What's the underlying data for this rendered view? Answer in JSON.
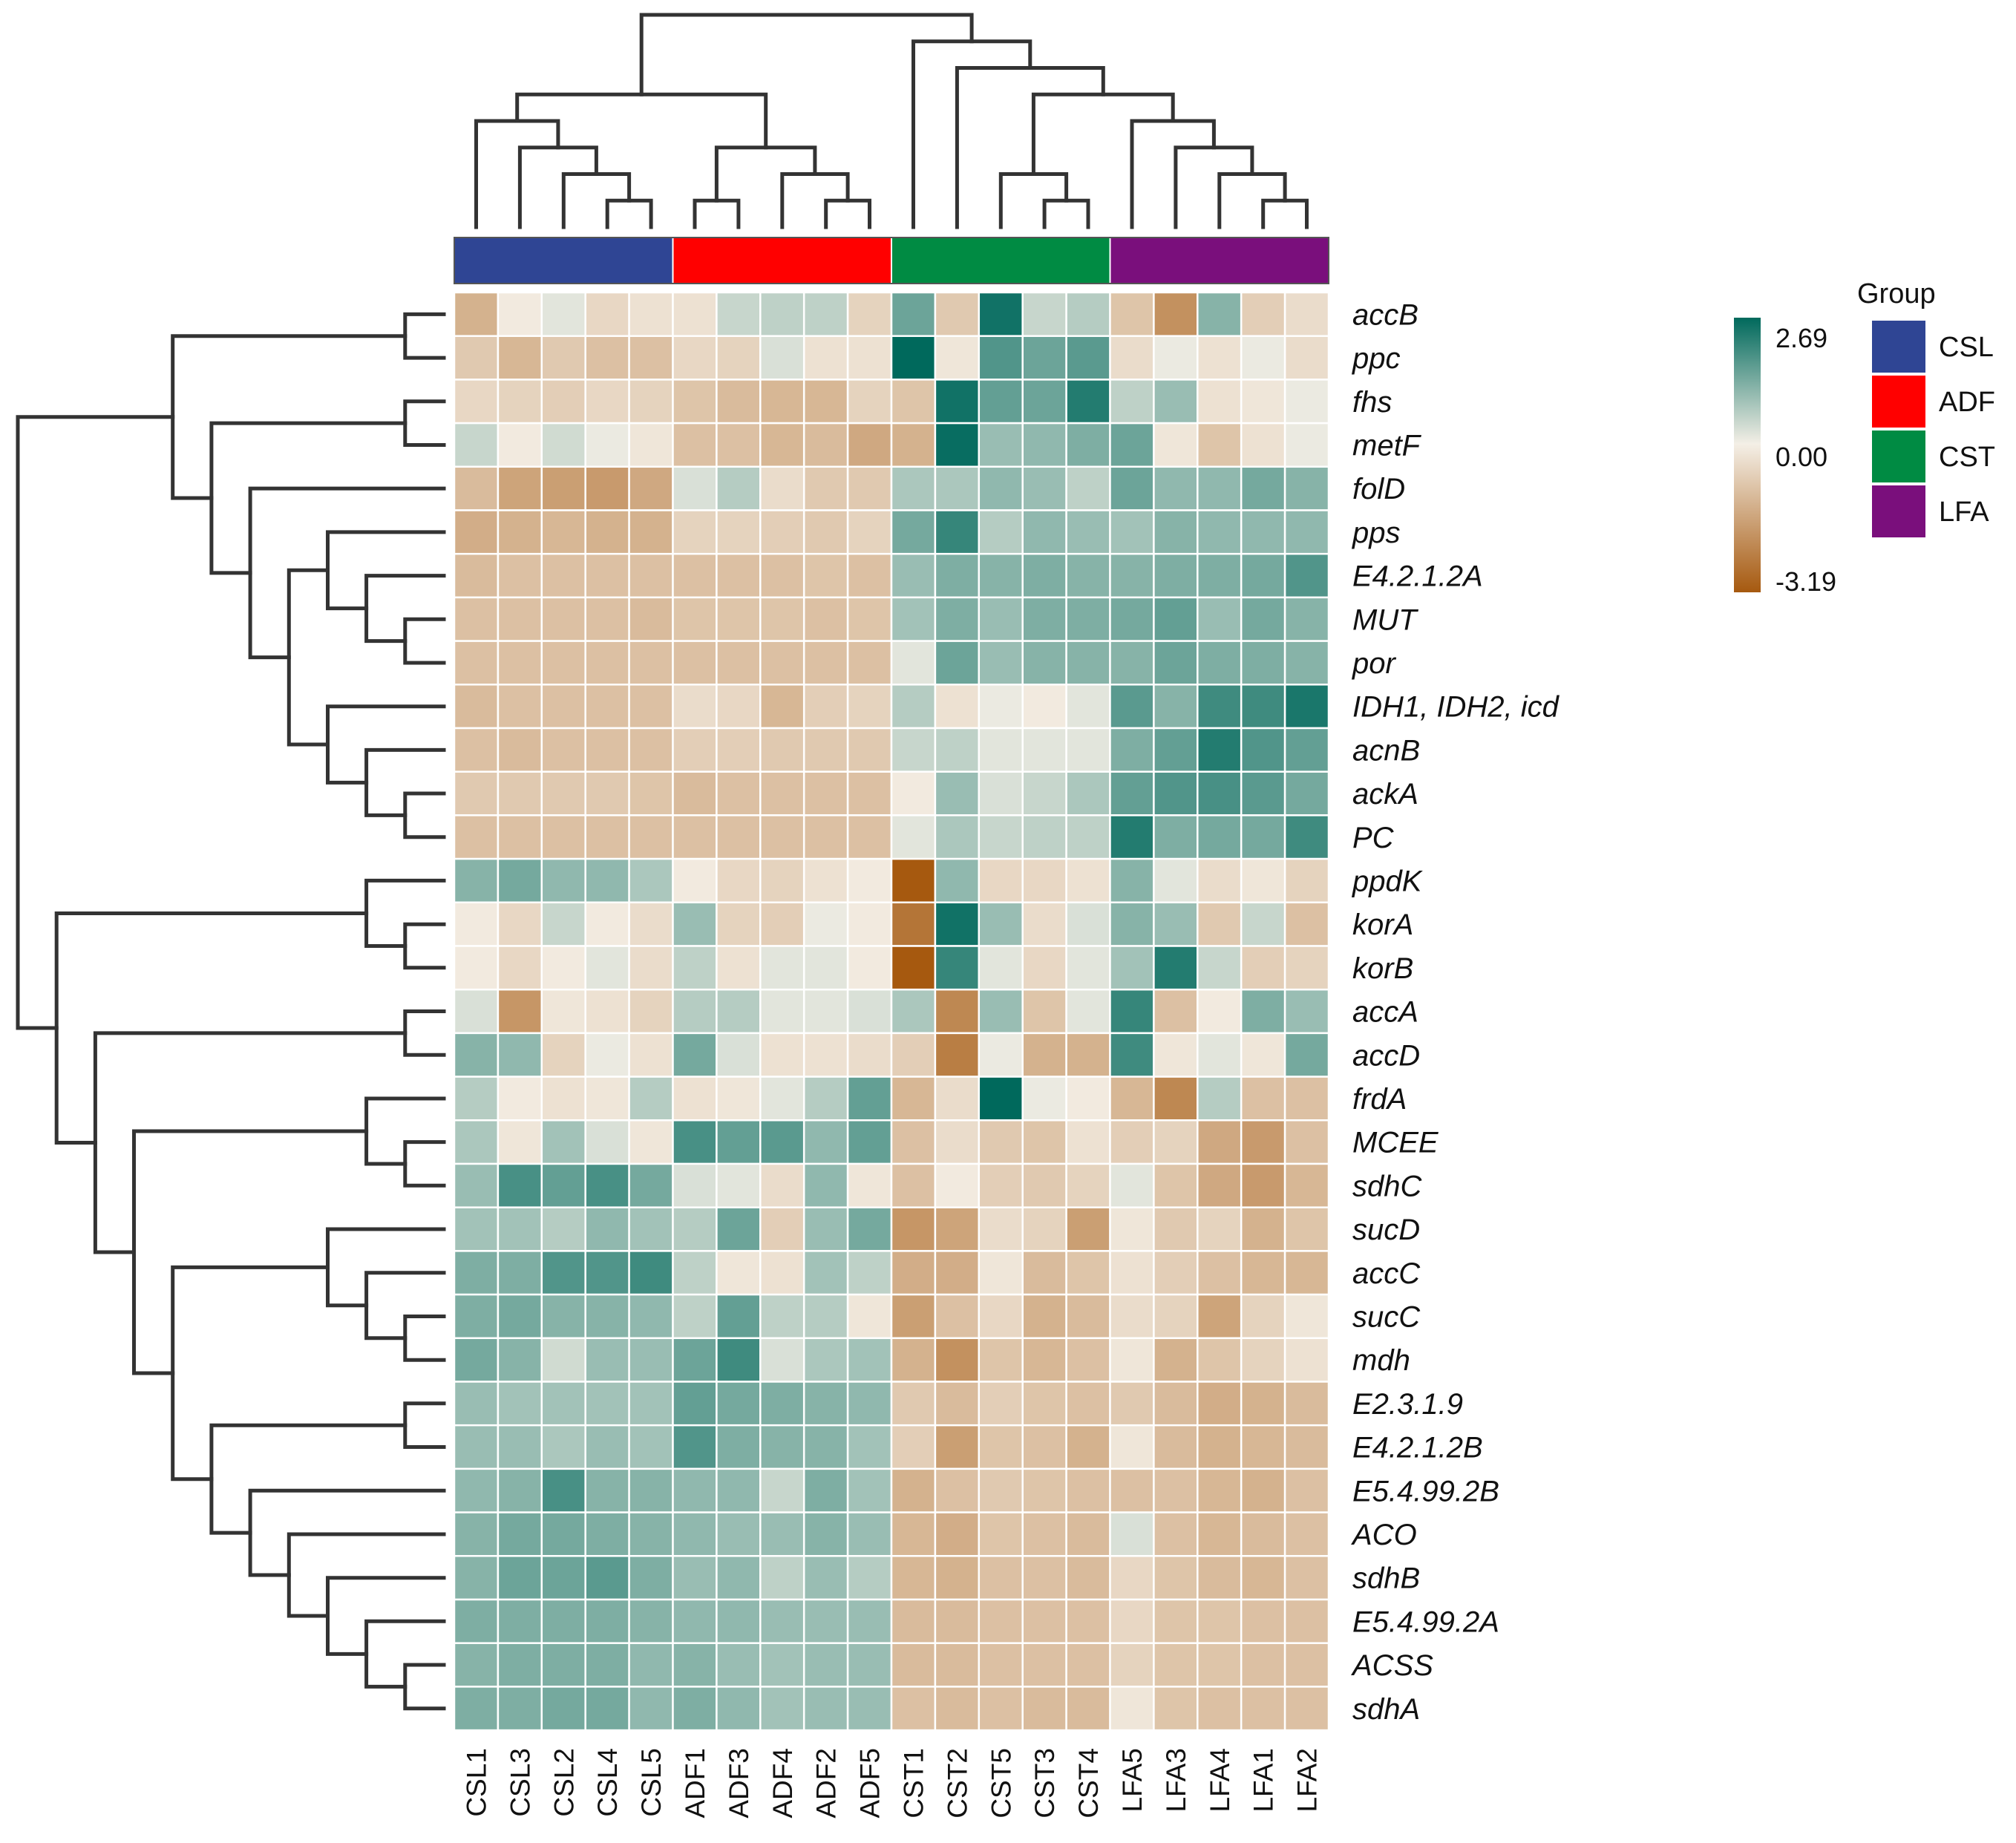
{
  "chart_data": {
    "type": "heatmap",
    "title": "",
    "columns": [
      "CSL1",
      "CSL3",
      "CSL2",
      "CSL4",
      "CSL5",
      "ADF1",
      "ADF3",
      "ADF4",
      "ADF2",
      "ADF5",
      "CST1",
      "CST2",
      "CST5",
      "CST3",
      "CST4",
      "LFA5",
      "LFA3",
      "LFA4",
      "LFA1",
      "LFA2"
    ],
    "column_groups": [
      "CSL",
      "CSL",
      "CSL",
      "CSL",
      "CSL",
      "ADF",
      "ADF",
      "ADF",
      "ADF",
      "ADF",
      "CST",
      "CST",
      "CST",
      "CST",
      "CST",
      "LFA",
      "LFA",
      "LFA",
      "LFA",
      "LFA"
    ],
    "rows": [
      "accB",
      "ppc",
      "fhs",
      "metF",
      "folD",
      "pps",
      "E4.2.1.2A",
      "MUT",
      "por",
      "IDH1, IDH2, icd",
      "acnB",
      "ackA",
      "PC",
      "ppdK",
      "korA",
      "korB",
      "accA",
      "accD",
      "frdA",
      "MCEE",
      "sdhC",
      "sucD",
      "accC",
      "sucC",
      "mdh",
      "E2.3.1.9",
      "E4.2.1.2B",
      "E5.4.99.2B",
      "ACO",
      "sdhB",
      "E5.4.99.2A",
      "ACSS",
      "sdhA"
    ],
    "values": [
      [
        -1.3,
        -0.1,
        0.2,
        -0.5,
        -0.3,
        -0.3,
        0.5,
        0.6,
        0.6,
        -0.6,
        1.5,
        -0.8,
        2.5,
        0.5,
        0.7,
        -0.9,
        -2.0,
        1.2,
        -0.7,
        -0.4
      ],
      [
        -0.8,
        -1.2,
        -0.8,
        -1.0,
        -1.0,
        -0.5,
        -0.6,
        0.3,
        -0.3,
        -0.3,
        2.7,
        -0.2,
        1.8,
        1.5,
        1.7,
        -0.4,
        0.1,
        -0.3,
        0.1,
        -0.4
      ],
      [
        -0.5,
        -0.6,
        -0.7,
        -0.5,
        -0.6,
        -0.9,
        -1.1,
        -1.2,
        -1.2,
        -0.6,
        -0.9,
        2.5,
        1.6,
        1.5,
        2.3,
        0.6,
        1.0,
        -0.3,
        -0.2,
        0.1
      ],
      [
        0.5,
        -0.1,
        0.4,
        0.1,
        -0.2,
        -1.0,
        -1.0,
        -1.2,
        -1.1,
        -1.5,
        -1.3,
        2.6,
        1.0,
        1.1,
        1.3,
        1.5,
        -0.2,
        -0.9,
        -0.3,
        0.1
      ],
      [
        -1.1,
        -1.6,
        -1.7,
        -1.8,
        -1.5,
        0.3,
        0.7,
        -0.4,
        -0.8,
        -0.8,
        0.8,
        0.8,
        1.1,
        1.0,
        0.6,
        1.5,
        1.1,
        1.1,
        1.4,
        1.2
      ],
      [
        -1.4,
        -1.3,
        -1.2,
        -1.3,
        -1.3,
        -0.6,
        -0.6,
        -0.7,
        -0.8,
        -0.6,
        1.4,
        2.1,
        0.7,
        1.1,
        1.0,
        0.9,
        1.2,
        1.1,
        1.1,
        1.1
      ],
      [
        -1.1,
        -1.0,
        -1.0,
        -1.0,
        -1.0,
        -1.0,
        -1.0,
        -1.0,
        -0.9,
        -1.0,
        1.0,
        1.3,
        1.2,
        1.3,
        1.2,
        1.2,
        1.3,
        1.3,
        1.4,
        1.8
      ],
      [
        -1.0,
        -1.0,
        -1.0,
        -1.0,
        -1.1,
        -0.9,
        -0.9,
        -0.9,
        -1.0,
        -0.9,
        0.9,
        1.3,
        1.0,
        1.3,
        1.3,
        1.4,
        1.6,
        1.0,
        1.4,
        1.2
      ],
      [
        -1.0,
        -1.0,
        -1.0,
        -1.0,
        -1.0,
        -1.0,
        -1.0,
        -1.0,
        -1.0,
        -1.0,
        0.2,
        1.5,
        1.0,
        1.2,
        1.2,
        1.2,
        1.5,
        1.3,
        1.3,
        1.2
      ],
      [
        -1.1,
        -1.0,
        -1.0,
        -1.0,
        -1.0,
        -0.4,
        -0.5,
        -1.2,
        -0.7,
        -0.6,
        0.7,
        -0.3,
        0.1,
        -0.1,
        0.2,
        1.7,
        1.2,
        2.0,
        2.0,
        2.4
      ],
      [
        -1.0,
        -1.1,
        -1.0,
        -1.0,
        -1.0,
        -0.7,
        -0.7,
        -0.8,
        -0.8,
        -0.8,
        0.5,
        0.6,
        0.2,
        0.2,
        0.2,
        1.3,
        1.6,
        2.3,
        1.8,
        1.6
      ],
      [
        -0.8,
        -0.8,
        -0.8,
        -0.8,
        -0.9,
        -1.1,
        -1.0,
        -1.0,
        -1.0,
        -1.0,
        -0.1,
        1.0,
        0.3,
        0.5,
        0.8,
        1.6,
        1.8,
        1.9,
        1.7,
        1.4
      ],
      [
        -1.0,
        -1.0,
        -1.0,
        -1.0,
        -1.0,
        -1.0,
        -1.0,
        -1.0,
        -1.0,
        -1.0,
        0.2,
        0.8,
        0.5,
        0.6,
        0.6,
        2.3,
        1.3,
        1.4,
        1.4,
        2.0
      ],
      [
        1.2,
        1.4,
        1.1,
        1.1,
        0.8,
        -0.1,
        -0.5,
        -0.6,
        -0.3,
        -0.1,
        -3.2,
        1.1,
        -0.5,
        -0.5,
        -0.3,
        1.2,
        0.2,
        -0.4,
        -0.2,
        -0.6
      ],
      [
        -0.1,
        -0.5,
        0.5,
        -0.1,
        -0.4,
        1.0,
        -0.6,
        -0.7,
        0.1,
        -0.1,
        -2.6,
        2.5,
        1.0,
        -0.4,
        0.3,
        1.2,
        1.0,
        -0.8,
        0.5,
        -1.0
      ],
      [
        -0.1,
        -0.5,
        -0.1,
        0.2,
        -0.4,
        0.6,
        -0.3,
        0.2,
        0.2,
        -0.1,
        -3.2,
        2.1,
        0.2,
        -0.5,
        0.2,
        0.9,
        2.3,
        0.5,
        -0.7,
        -0.6
      ],
      [
        0.3,
        -1.9,
        -0.2,
        -0.3,
        -0.6,
        0.7,
        0.7,
        0.2,
        0.2,
        0.3,
        0.8,
        -2.2,
        1.0,
        -0.9,
        0.2,
        2.1,
        -1.0,
        -0.1,
        1.3,
        1.0
      ],
      [
        1.2,
        1.1,
        -0.6,
        0.1,
        -0.3,
        1.4,
        0.3,
        -0.3,
        -0.3,
        -0.4,
        -0.7,
        -2.4,
        0.1,
        -1.3,
        -1.3,
        2.0,
        -0.2,
        0.2,
        -0.2,
        1.4
      ],
      [
        0.7,
        -0.1,
        -0.3,
        -0.2,
        0.7,
        -0.3,
        -0.2,
        0.2,
        0.7,
        1.6,
        -1.2,
        -0.4,
        2.7,
        0.1,
        -0.1,
        -1.2,
        -2.2,
        0.7,
        -1.0,
        -1.0
      ],
      [
        0.8,
        -0.2,
        0.9,
        0.3,
        -0.2,
        1.9,
        1.6,
        1.7,
        1.1,
        1.6,
        -1.0,
        -0.4,
        -0.8,
        -0.9,
        -0.3,
        -0.7,
        -0.6,
        -1.5,
        -1.8,
        -1.0
      ],
      [
        1.0,
        1.9,
        1.6,
        1.9,
        1.4,
        0.3,
        0.2,
        -0.4,
        1.1,
        -0.2,
        -1.0,
        -0.1,
        -0.7,
        -0.8,
        -0.6,
        0.2,
        -0.9,
        -1.5,
        -1.8,
        -1.2
      ],
      [
        0.9,
        0.9,
        0.7,
        1.1,
        0.9,
        0.7,
        1.5,
        -0.7,
        1.0,
        1.4,
        -1.9,
        -1.6,
        -0.4,
        -0.6,
        -1.7,
        -0.2,
        -0.8,
        -0.6,
        -1.3,
        -0.9
      ],
      [
        1.3,
        1.3,
        1.8,
        1.8,
        2.0,
        0.6,
        -0.2,
        -0.3,
        0.9,
        0.6,
        -1.4,
        -1.4,
        -0.2,
        -1.1,
        -0.9,
        -0.3,
        -0.7,
        -1.0,
        -1.2,
        -1.2
      ],
      [
        1.3,
        1.4,
        1.2,
        1.2,
        1.1,
        0.6,
        1.6,
        0.6,
        0.7,
        -0.2,
        -1.7,
        -1.0,
        -0.5,
        -1.3,
        -1.1,
        -0.4,
        -0.6,
        -1.6,
        -0.6,
        -0.2
      ],
      [
        1.4,
        1.2,
        0.4,
        1.0,
        1.0,
        1.5,
        2.0,
        0.3,
        0.8,
        0.9,
        -1.3,
        -2.0,
        -0.9,
        -1.2,
        -1.0,
        -0.2,
        -1.3,
        -0.9,
        -0.6,
        -0.3
      ],
      [
        1.0,
        0.9,
        0.9,
        0.9,
        0.9,
        1.6,
        1.4,
        1.3,
        1.2,
        1.1,
        -0.8,
        -1.1,
        -0.7,
        -0.9,
        -1.0,
        -0.8,
        -1.1,
        -1.4,
        -1.3,
        -1.1
      ],
      [
        1.0,
        1.0,
        0.8,
        1.0,
        0.9,
        1.8,
        1.3,
        1.2,
        1.2,
        0.9,
        -0.7,
        -1.7,
        -0.9,
        -1.0,
        -1.3,
        -0.2,
        -1.1,
        -1.3,
        -1.2,
        -1.1
      ],
      [
        1.1,
        1.2,
        1.9,
        1.2,
        1.2,
        1.1,
        1.1,
        0.5,
        1.3,
        0.9,
        -1.3,
        -1.0,
        -0.8,
        -0.9,
        -1.0,
        -1.0,
        -1.0,
        -1.2,
        -1.3,
        -1.0
      ],
      [
        1.2,
        1.4,
        1.4,
        1.3,
        1.2,
        1.1,
        1.0,
        1.0,
        1.2,
        1.0,
        -1.2,
        -1.4,
        -0.9,
        -1.0,
        -1.1,
        0.3,
        -1.0,
        -1.2,
        -1.1,
        -1.0
      ],
      [
        1.2,
        1.5,
        1.5,
        1.7,
        1.3,
        1.0,
        1.1,
        0.6,
        1.0,
        0.7,
        -1.2,
        -1.3,
        -1.0,
        -1.0,
        -1.1,
        -0.5,
        -0.9,
        -1.1,
        -1.2,
        -1.0
      ],
      [
        1.3,
        1.3,
        1.3,
        1.3,
        1.2,
        1.1,
        1.1,
        1.0,
        1.0,
        1.0,
        -1.1,
        -1.1,
        -1.0,
        -1.0,
        -1.0,
        -0.5,
        -0.9,
        -0.9,
        -1.0,
        -1.0
      ],
      [
        1.2,
        1.3,
        1.3,
        1.3,
        1.1,
        1.2,
        1.0,
        0.9,
        1.0,
        1.0,
        -1.1,
        -1.1,
        -1.0,
        -1.0,
        -1.0,
        -0.6,
        -0.9,
        -0.9,
        -1.0,
        -1.0
      ],
      [
        1.3,
        1.3,
        1.4,
        1.4,
        1.1,
        1.3,
        1.1,
        0.9,
        1.0,
        1.0,
        -1.0,
        -1.1,
        -1.0,
        -1.1,
        -1.1,
        -0.2,
        -0.9,
        -1.0,
        -1.0,
        -1.0
      ]
    ],
    "color_scale": {
      "min": -3.19,
      "mid": 0.0,
      "max": 2.69,
      "min_color": "#A6590F",
      "mid_color": "#F4EFE6",
      "max_color": "#00695C"
    },
    "scale_labels": [
      "2.69",
      "0.00",
      "-3.19"
    ],
    "legend": {
      "title": "Group",
      "items": [
        {
          "label": "CSL",
          "color": "#2F4594"
        },
        {
          "label": "ADF",
          "color": "#FF0000"
        },
        {
          "label": "CST",
          "color": "#008B43"
        },
        {
          "label": "LFA",
          "color": "#7A0F7C"
        }
      ]
    },
    "col_dendrogram": [
      [
        "CSL4",
        "CSL5"
      ],
      [
        "CSL2",
        "m0"
      ],
      [
        "CSL3",
        "m1"
      ],
      [
        "CSL1",
        "m2"
      ],
      [
        "ADF2",
        "ADF5"
      ],
      [
        "ADF4",
        "m4"
      ],
      [
        "ADF1",
        "ADF3"
      ],
      [
        "m6",
        "m5"
      ],
      [
        "m3",
        "m7"
      ],
      [
        "CST3",
        "CST4"
      ],
      [
        "CST5",
        "m9"
      ],
      [
        "LFA1",
        "LFA2"
      ],
      [
        "LFA4",
        "m11"
      ],
      [
        "LFA3",
        "m12"
      ],
      [
        "LFA5",
        "m13"
      ],
      [
        "m10",
        "m14"
      ],
      [
        "CST2",
        "m15"
      ],
      [
        "CST1",
        "m16"
      ],
      [
        "m8",
        "m17"
      ]
    ],
    "row_dendrogram": [
      [
        "accB",
        "ppc"
      ],
      [
        "fhs",
        "metF"
      ],
      [
        "MUT",
        "por"
      ],
      [
        "E4.2.1.2A",
        "m2"
      ],
      [
        "pps",
        "m3"
      ],
      [
        "ackA",
        "PC"
      ],
      [
        "acnB",
        "m5"
      ],
      [
        "IDH1, IDH2, icd",
        "m6"
      ],
      [
        "m4",
        "m7"
      ],
      [
        "folD",
        "m8"
      ],
      [
        "m1",
        "m9"
      ],
      [
        "m0",
        "m10"
      ],
      [
        "korA",
        "korB"
      ],
      [
        "ppdK",
        "m12"
      ],
      [
        "accA",
        "accD"
      ],
      [
        "MCEE",
        "sdhC"
      ],
      [
        "frdA",
        "m15"
      ],
      [
        "ACSS",
        "sdhA"
      ],
      [
        "E5.4.99.2A",
        "m17"
      ],
      [
        "sdhB",
        "m18"
      ],
      [
        "ACO",
        "m19"
      ],
      [
        "E5.4.99.2B",
        "m20"
      ],
      [
        "E2.3.1.9",
        "E4.2.1.2B"
      ],
      [
        "m22",
        "m21"
      ],
      [
        "sucC",
        "mdh"
      ],
      [
        "accC",
        "m24"
      ],
      [
        "sucD",
        "m25"
      ],
      [
        "m26",
        "m23"
      ],
      [
        "m16",
        "m27"
      ],
      [
        "m14",
        "m28"
      ],
      [
        "m13",
        "m29"
      ],
      [
        "m11",
        "m30"
      ]
    ]
  }
}
